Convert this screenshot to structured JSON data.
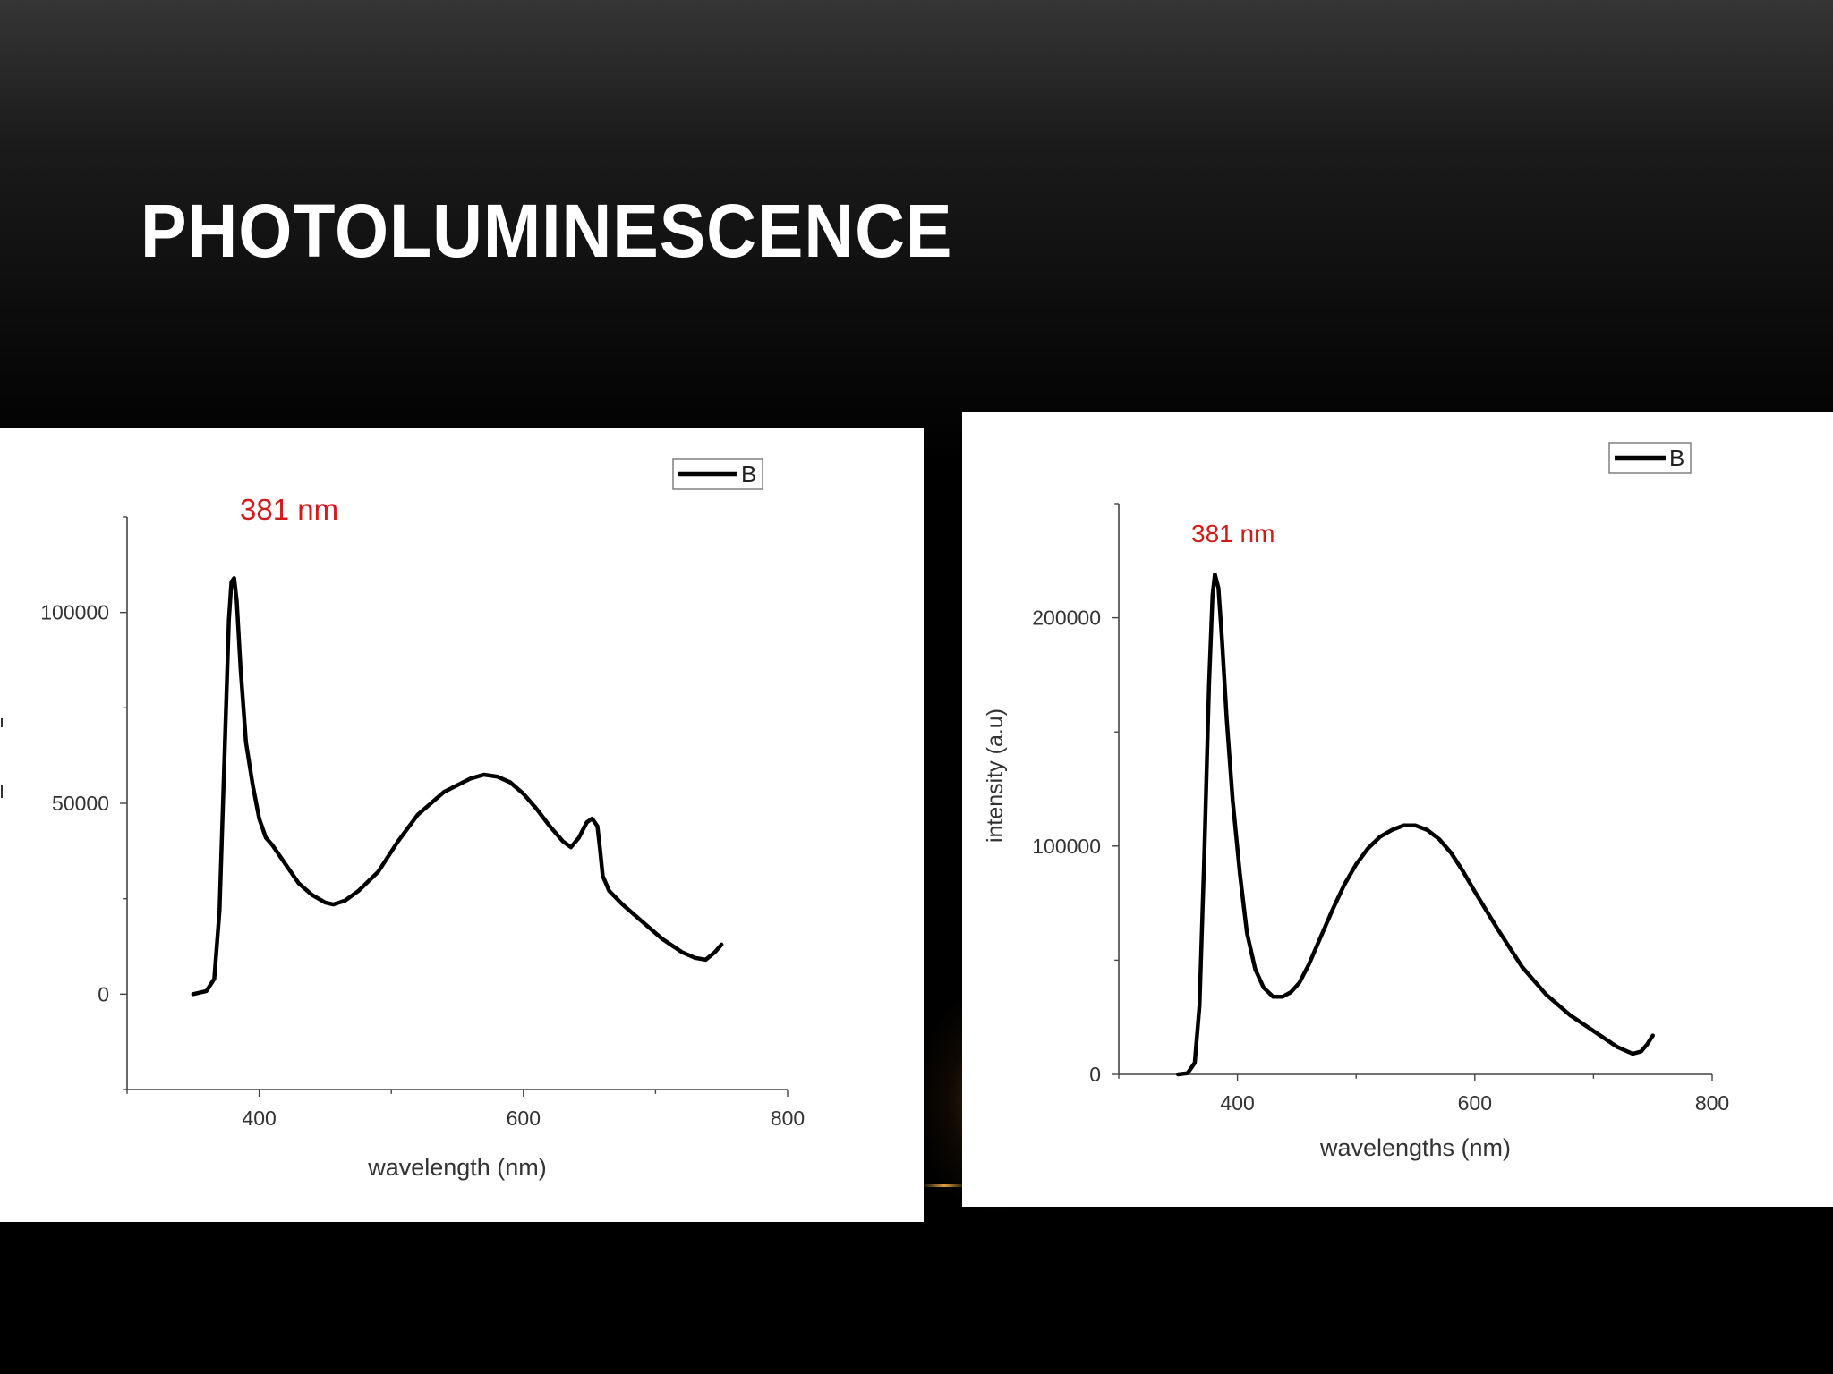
{
  "slide": {
    "title": "PHOTOLUMINESCENCE"
  },
  "chart_data": [
    {
      "type": "line",
      "title": "",
      "xlabel": "wavelength (nm)",
      "ylabel": "",
      "xlim": [
        300,
        800
      ],
      "ylim": [
        -25000,
        125000
      ],
      "x_ticks": [
        400,
        600,
        800
      ],
      "y_ticks": [
        0,
        50000,
        100000
      ],
      "legend": {
        "placement": "top-right",
        "entries": [
          "B"
        ]
      },
      "annotation": {
        "text": "381 nm",
        "color": "#d11a1a"
      },
      "series": [
        {
          "name": "B",
          "color": "#000000",
          "x": [
            350,
            360,
            366,
            370,
            374,
            377,
            379,
            381,
            383,
            386,
            390,
            395,
            400,
            405,
            410,
            420,
            430,
            440,
            450,
            456,
            465,
            475,
            490,
            505,
            520,
            540,
            560,
            570,
            580,
            590,
            600,
            610,
            620,
            630,
            636,
            642,
            648,
            652,
            656,
            658,
            660,
            665,
            675,
            690,
            705,
            720,
            730,
            738,
            745,
            750
          ],
          "y": [
            0,
            800,
            4000,
            22000,
            65000,
            98000,
            108000,
            109000,
            103000,
            85000,
            66000,
            55000,
            46000,
            41000,
            39000,
            34000,
            29000,
            26000,
            24000,
            23500,
            24500,
            27000,
            32000,
            40000,
            47000,
            53000,
            56500,
            57500,
            57000,
            55500,
            52500,
            48500,
            44000,
            40000,
            38500,
            41000,
            45000,
            46000,
            44000,
            38000,
            31000,
            27000,
            23500,
            19000,
            14500,
            11000,
            9500,
            9000,
            11000,
            13000
          ]
        }
      ]
    },
    {
      "type": "line",
      "title": "",
      "xlabel": "wavelengths (nm)",
      "ylabel": "intensity (a.u)",
      "xlim": [
        300,
        800
      ],
      "ylim": [
        0,
        250000
      ],
      "x_ticks": [
        400,
        600,
        800
      ],
      "y_ticks": [
        0,
        100000,
        200000
      ],
      "legend": {
        "placement": "top-right",
        "entries": [
          "B"
        ]
      },
      "annotation": {
        "text": "381 nm",
        "color": "#d11a1a"
      },
      "series": [
        {
          "name": "B",
          "color": "#000000",
          "x": [
            350,
            358,
            364,
            368,
            372,
            376,
            379,
            381,
            384,
            387,
            391,
            396,
            402,
            408,
            415,
            422,
            430,
            438,
            445,
            452,
            460,
            470,
            480,
            490,
            500,
            510,
            520,
            530,
            540,
            550,
            560,
            570,
            580,
            590,
            600,
            620,
            640,
            660,
            680,
            700,
            720,
            733,
            740,
            745,
            750
          ],
          "y": [
            0,
            500,
            5000,
            30000,
            95000,
            170000,
            210000,
            219000,
            213000,
            190000,
            155000,
            120000,
            88000,
            62000,
            46000,
            38000,
            34000,
            34000,
            36000,
            40000,
            48000,
            60000,
            72000,
            83000,
            92000,
            99000,
            104000,
            107000,
            109000,
            109000,
            107000,
            103000,
            97000,
            89000,
            80000,
            63000,
            47000,
            35000,
            26000,
            19000,
            12000,
            9000,
            10000,
            13000,
            17000
          ]
        }
      ]
    }
  ]
}
